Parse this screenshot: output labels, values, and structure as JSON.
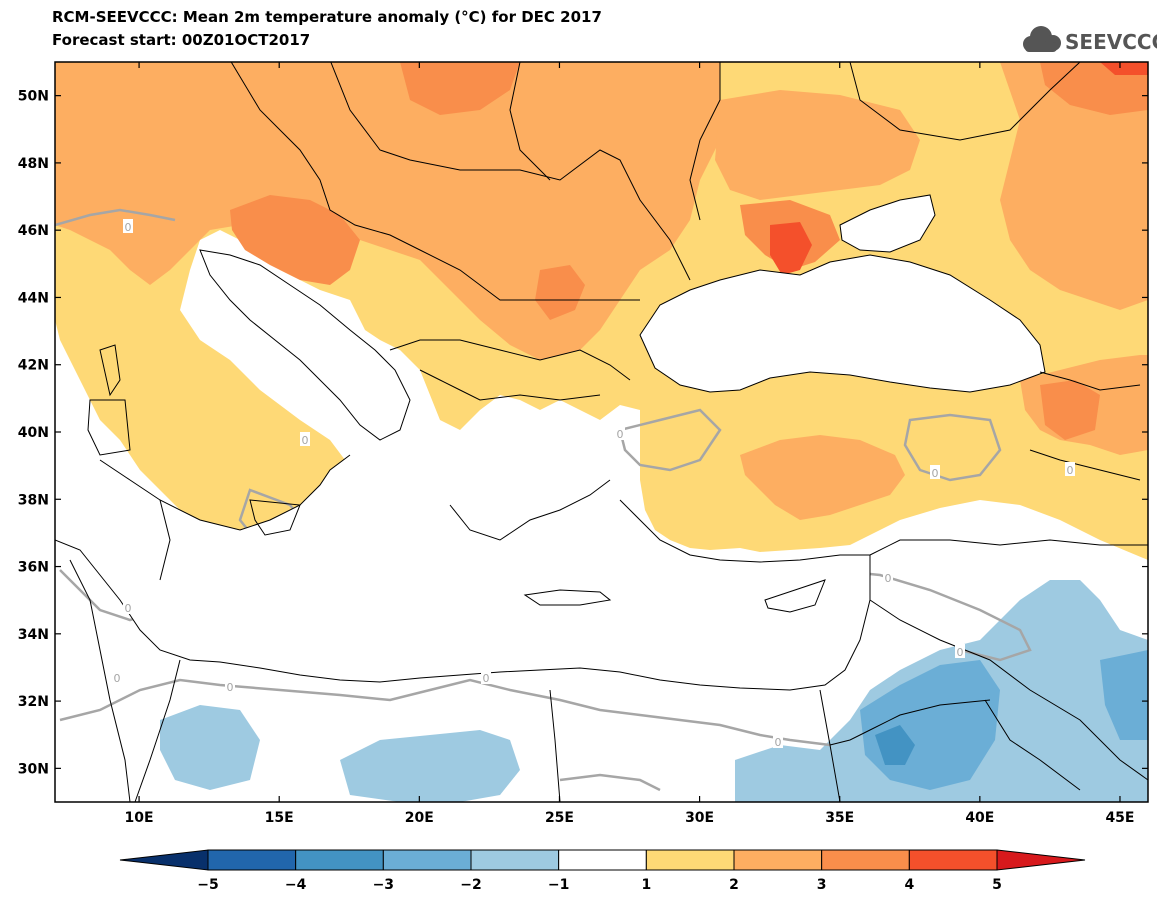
{
  "header": {
    "title": "RCM-SEEVCCC: Mean 2m temperature anomaly (°C) for DEC 2017",
    "subtitle": "Forecast start: 00Z01OCT2017",
    "logo_text": "SEEVCCC"
  },
  "map": {
    "lon_range": [
      7,
      46
    ],
    "lat_range": [
      29,
      51
    ],
    "lon_ticks": [
      {
        "value": 10,
        "label": "10E"
      },
      {
        "value": 15,
        "label": "15E"
      },
      {
        "value": 20,
        "label": "20E"
      },
      {
        "value": 25,
        "label": "25E"
      },
      {
        "value": 30,
        "label": "30E"
      },
      {
        "value": 35,
        "label": "35E"
      },
      {
        "value": 40,
        "label": "40E"
      },
      {
        "value": 45,
        "label": "45E"
      }
    ],
    "lat_ticks": [
      {
        "value": 30,
        "label": "30N"
      },
      {
        "value": 32,
        "label": "32N"
      },
      {
        "value": 34,
        "label": "34N"
      },
      {
        "value": 36,
        "label": "36N"
      },
      {
        "value": 38,
        "label": "38N"
      },
      {
        "value": 40,
        "label": "40N"
      },
      {
        "value": 42,
        "label": "42N"
      },
      {
        "value": 44,
        "label": "44N"
      },
      {
        "value": 46,
        "label": "46N"
      },
      {
        "value": 48,
        "label": "48N"
      },
      {
        "value": 50,
        "label": "50N"
      }
    ],
    "zero_contour_label": "0"
  },
  "colorbar": {
    "labels": [
      "−5",
      "−4",
      "−3",
      "−2",
      "−1",
      "1",
      "2",
      "3",
      "4",
      "5"
    ],
    "colors": [
      "#08306b",
      "#2166ac",
      "#4393c3",
      "#6baed6",
      "#9ecae1",
      "#ffffff",
      "#fed976",
      "#fdae61",
      "#f98e4b",
      "#f4502b",
      "#d7191c"
    ]
  },
  "colors": {
    "anom_1_2": "#fed976",
    "anom_2_3": "#fdae61",
    "anom_3_4": "#f98e4b",
    "anom_4_5": "#f4502b",
    "anom_gt5": "#d7191c",
    "anom_m1_m2": "#9ecae1",
    "anom_m2_m3": "#6baed6",
    "anom_m3_m4": "#4393c3",
    "zero_contour": "#a6a6a6"
  }
}
